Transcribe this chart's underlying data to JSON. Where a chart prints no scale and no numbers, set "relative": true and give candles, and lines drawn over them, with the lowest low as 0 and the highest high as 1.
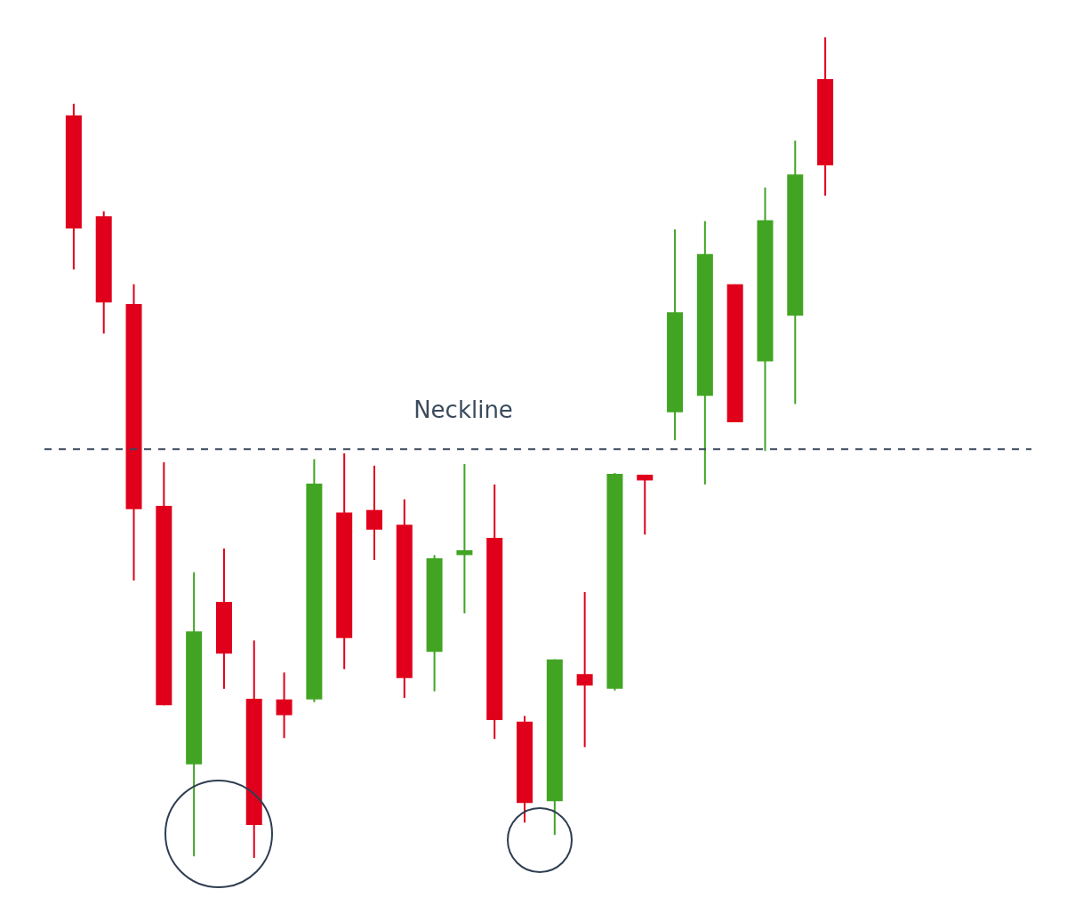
{
  "chart_data": {
    "type": "candlestick",
    "relative": true,
    "categories": [
      null,
      null,
      null,
      null,
      null,
      null,
      null,
      null,
      null,
      null,
      null,
      null,
      null,
      null,
      null,
      null,
      null,
      null,
      null,
      null,
      null,
      null,
      null,
      null,
      null,
      null
    ],
    "ohlc": [
      [
        0.905,
        0.919,
        0.717,
        0.767
      ],
      [
        0.782,
        0.788,
        0.639,
        0.677
      ],
      [
        0.675,
        0.699,
        0.338,
        0.425
      ],
      [
        0.429,
        0.482,
        0.186,
        0.186
      ],
      [
        0.114,
        0.348,
        0.002,
        0.276
      ],
      [
        0.312,
        0.377,
        0.206,
        0.249
      ],
      [
        0.194,
        0.265,
        0,
        0.04
      ],
      [
        0.193,
        0.226,
        0.146,
        0.174
      ],
      [
        0.193,
        0.486,
        0.19,
        0.456
      ],
      [
        0.421,
        0.493,
        0.23,
        0.268
      ],
      [
        0.424,
        0.478,
        0.363,
        0.4
      ],
      [
        0.406,
        0.437,
        0.195,
        0.219
      ],
      [
        0.251,
        0.369,
        0.203,
        0.365
      ],
      [
        0.369,
        0.48,
        0.298,
        0.375
      ],
      [
        0.39,
        0.455,
        0.145,
        0.168
      ],
      [
        0.166,
        0.173,
        0.043,
        0.067
      ],
      [
        0.069,
        0.242,
        0.028,
        0.242
      ],
      [
        0.224,
        0.324,
        0.135,
        0.21
      ],
      [
        0.206,
        0.469,
        0.204,
        0.468
      ],
      [
        0.467,
        0.467,
        0.394,
        0.46
      ],
      [
        0.543,
        0.766,
        0.509,
        0.665
      ],
      [
        0.563,
        0.776,
        0.455,
        0.736
      ],
      [
        0.699,
        0.699,
        0.531,
        0.531
      ],
      [
        0.605,
        0.817,
        0.496,
        0.777
      ],
      [
        0.661,
        0.874,
        0.553,
        0.833
      ],
      [
        0.949,
        1,
        0.807,
        0.844
      ]
    ],
    "colors": [
      "#e0001b",
      "#e0001b",
      "#e0001b",
      "#e0001b",
      "#41a523",
      "#e0001b",
      "#e0001b",
      "#e0001b",
      "#41a523",
      "#e0001b",
      "#e0001b",
      "#e0001b",
      "#41a523",
      "#41a523",
      "#e0001b",
      "#e0001b",
      "#41a523",
      "#e0001b",
      "#41a523",
      "#e0001b",
      "#41a523",
      "#41a523",
      "#e0001b",
      "#41a523",
      "#41a523",
      "#e0001b"
    ],
    "ref_lines": [
      {
        "axis": "y",
        "value": 0.498,
        "label": "Neckline",
        "color": "#3b4a5e",
        "line_style": "dashed"
      }
    ]
  }
}
